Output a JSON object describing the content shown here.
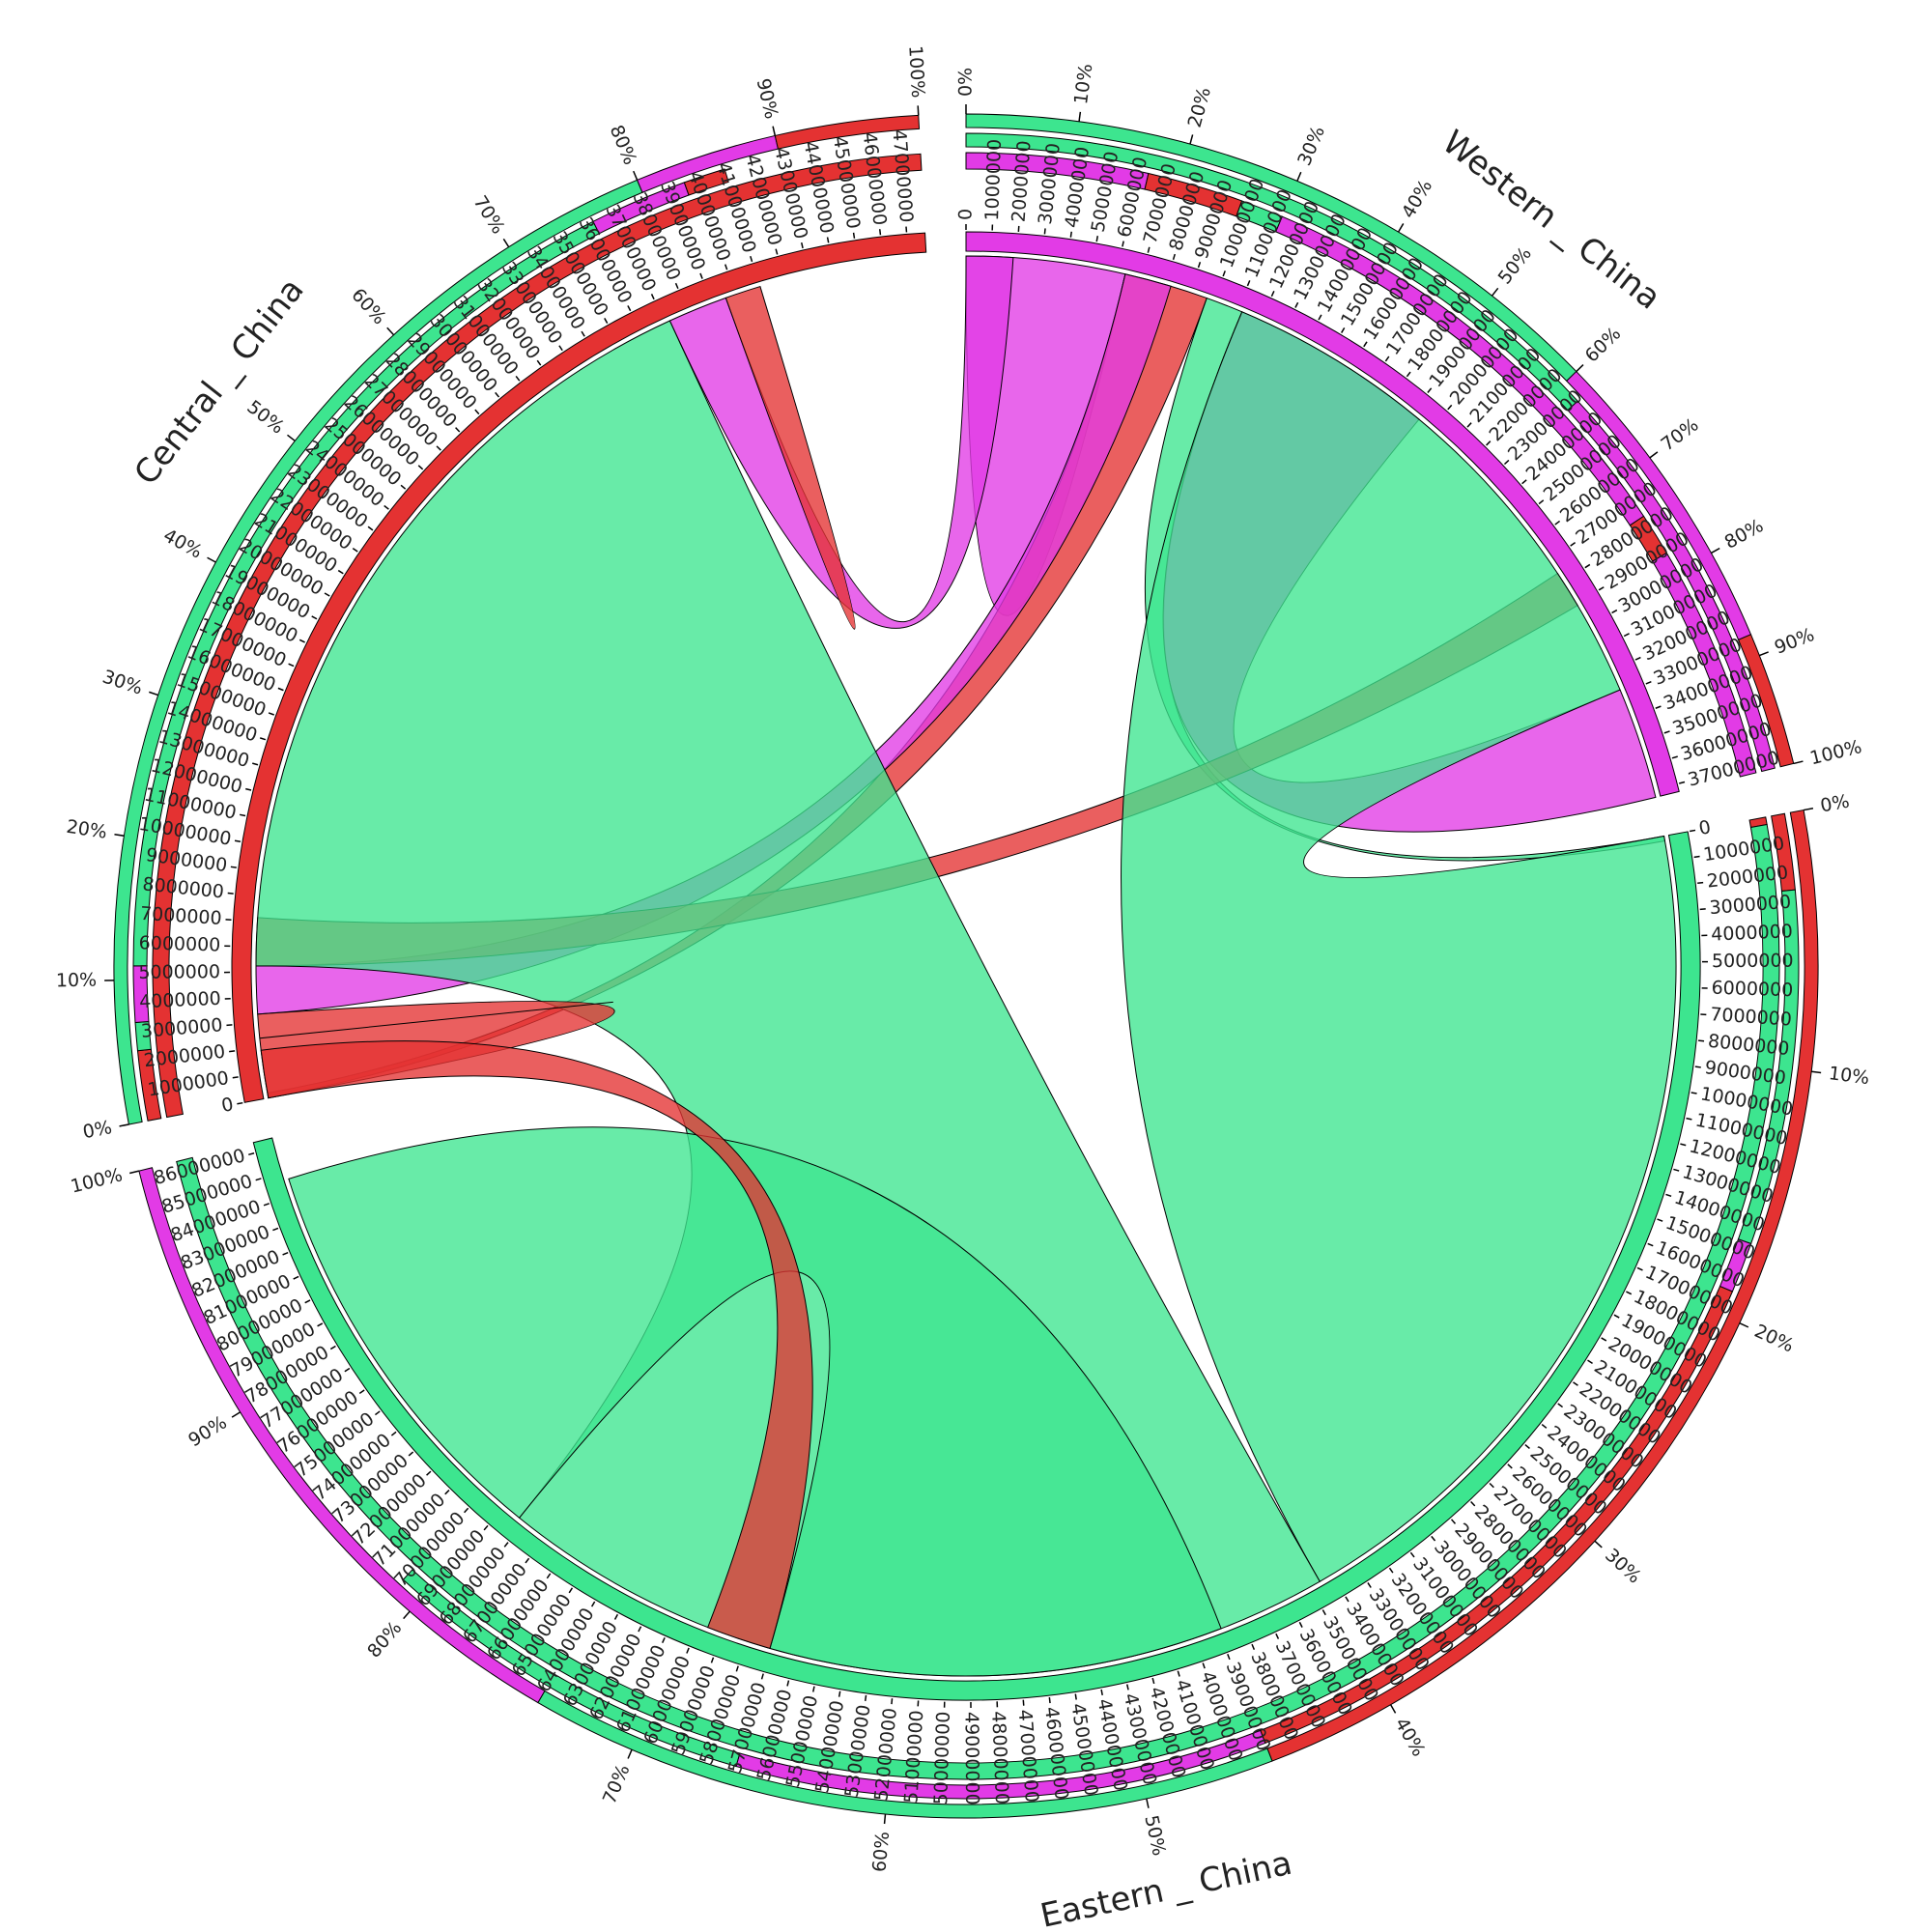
{
  "chart_data": {
    "type": "chord",
    "unit_step": 1000000,
    "colors": {
      "region_ring": "#3de58f",
      "origin_green": "#3de58f",
      "origin_magenta": "#e23be6",
      "origin_red": "#e43232"
    },
    "sectors": [
      {
        "name": "Western _ China",
        "total": 37300000,
        "tick_max": 37000000,
        "start_angle": 0,
        "color": "#e23be6",
        "pct_ring_segments": [
          {
            "color": "#3de58f",
            "from": 0,
            "to": 0.6
          },
          {
            "color": "#e23be6",
            "from": 0.6,
            "to": 0.88
          },
          {
            "color": "#e43232",
            "from": 0.88,
            "to": 1.0
          }
        ],
        "target_ring_segments": [
          {
            "color": "#3de58f",
            "from": 0,
            "to": 0.62
          },
          {
            "color": "#e23be6",
            "from": 0.62,
            "to": 1.0
          }
        ],
        "origin_ring_segments": [
          {
            "color": "#e23be6",
            "from": 0,
            "to": 0.17
          },
          {
            "color": "#e43232",
            "from": 0.17,
            "to": 0.26
          },
          {
            "color": "#3de58f",
            "from": 0.26,
            "to": 0.3
          },
          {
            "color": "#e23be6",
            "from": 0.3,
            "to": 0.74
          },
          {
            "color": "#e43232",
            "from": 0.74,
            "to": 0.78
          },
          {
            "color": "#e23be6",
            "from": 0.78,
            "to": 1.0
          }
        ]
      },
      {
        "name": "Eastern _ China",
        "total": 86400000,
        "tick_max": 86000000,
        "start_angle": 94.5,
        "color": "#3de58f",
        "pct_ring_segments": [
          {
            "color": "#e43232",
            "from": 0,
            "to": 0.45
          },
          {
            "color": "#3de58f",
            "from": 0.45,
            "to": 0.74
          },
          {
            "color": "#e23be6",
            "from": 0.74,
            "to": 1.0
          }
        ],
        "target_ring_segments": [
          {
            "color": "#e43232",
            "from": 0,
            "to": 0.03
          },
          {
            "color": "#3de58f",
            "from": 0.03,
            "to": 0.17
          },
          {
            "color": "#e23be6",
            "from": 0.17,
            "to": 0.19
          },
          {
            "color": "#e43232",
            "from": 0.19,
            "to": 0.45
          },
          {
            "color": "#e23be6",
            "from": 0.45,
            "to": 0.66
          },
          {
            "color": "#3de58f",
            "from": 0.66,
            "to": 0.81
          }
        ],
        "origin_ring_segments": [
          {
            "color": "#e43232",
            "from": 0,
            "to": 0.003
          },
          {
            "color": "#3de58f",
            "from": 0.003,
            "to": 1.0
          }
        ]
      },
      {
        "name": "Central _ China",
        "total": 47700000,
        "tick_max": 47000000,
        "start_angle": 265.5,
        "color": "#e43232",
        "pct_ring_segments": [
          {
            "color": "#3de58f",
            "from": 0,
            "to": 0.8
          },
          {
            "color": "#e23be6",
            "from": 0.8,
            "to": 0.9
          },
          {
            "color": "#e43232",
            "from": 0.9,
            "to": 1.0
          }
        ],
        "target_ring_segments": [
          {
            "color": "#e43232",
            "from": 0,
            "to": 0.05
          },
          {
            "color": "#3de58f",
            "from": 0.05,
            "to": 0.07
          },
          {
            "color": "#e23be6",
            "from": 0.07,
            "to": 0.11
          },
          {
            "color": "#3de58f",
            "from": 0.11,
            "to": 0.76
          },
          {
            "color": "#e23be6",
            "from": 0.76,
            "to": 0.83
          },
          {
            "color": "#e43232",
            "from": 0.83,
            "to": 0.86
          }
        ],
        "origin_ring_segments": [
          {
            "color": "#e43232",
            "from": 0,
            "to": 1.0
          }
        ]
      }
    ],
    "pct_ticks": [
      "0%",
      "10%",
      "20%",
      "30%",
      "40%",
      "50%",
      "60%",
      "70%",
      "80%",
      "90%",
      "100%"
    ],
    "flows": [
      {
        "from": "Western _ China",
        "s0": 0.0,
        "s1": 0.17,
        "to": "Western _ China",
        "t0": 0.0,
        "t1": 0.17,
        "color": "#e23be6",
        "self": true
      },
      {
        "from": "Western _ China",
        "s0": 0.17,
        "s1": 0.26,
        "to": "Central _ China",
        "t0": 0.0,
        "t1": 0.0,
        "color": "#e43232"
      },
      {
        "from": "Western _ China",
        "s0": 0.26,
        "s1": 0.3,
        "to": "Eastern _ China",
        "t0": 0.0,
        "t1": 0.0,
        "color": "#3de58f"
      },
      {
        "from": "Western _ China",
        "s0": 0.3,
        "s1": 0.52,
        "to": "Western _ China",
        "t0": 0.88,
        "t1": 1.0,
        "color": "#e23be6"
      },
      {
        "from": "Western _ China",
        "s0": 0.17,
        "s1": 0.22,
        "to": "Central _ China",
        "t0": 0.07,
        "t1": 0.11,
        "color": "#e23be6"
      },
      {
        "from": "Western _ China",
        "s0": 0.74,
        "s1": 0.78,
        "to": "Central _ China",
        "t0": 0.11,
        "t1": 0.15,
        "color": "#e43232"
      },
      {
        "from": "Eastern _ China",
        "s0": 0.0,
        "s1": 0.4,
        "to": "Western _ China",
        "t0": 0.3,
        "t1": 0.88,
        "color": "#3de58f"
      },
      {
        "from": "Eastern _ China",
        "s0": 0.4,
        "s1": 0.79,
        "to": "Central _ China",
        "t0": 0.11,
        "t1": 0.78,
        "color": "#3de58f"
      },
      {
        "from": "Eastern _ China",
        "s0": 0.79,
        "s1": 0.98,
        "to": "Eastern _ China",
        "t0": 0.45,
        "t1": 0.66,
        "color": "#3de58f"
      },
      {
        "from": "Central _ China",
        "s0": 0.0,
        "s1": 0.05,
        "to": "Central _ China",
        "t0": 0.05,
        "t1": 0.07,
        "color": "#e43232",
        "self": true
      },
      {
        "from": "Central _ China",
        "s0": 0.0,
        "s1": 0.04,
        "to": "Eastern _ China",
        "t0": 0.66,
        "t1": 0.69,
        "color": "#e43232"
      },
      {
        "from": "Central _ China",
        "s0": 0.78,
        "s1": 0.83,
        "to": "Western _ China",
        "t0": 0.0,
        "t1": 0.05,
        "color": "#e23be6"
      },
      {
        "from": "Central _ China",
        "s0": 0.83,
        "s1": 0.86,
        "to": "Central _ China",
        "t0": 0.83,
        "t1": 0.86,
        "color": "#e43232",
        "self": true
      }
    ]
  }
}
